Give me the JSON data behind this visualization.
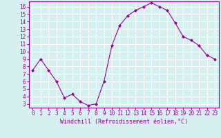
{
  "x": [
    0,
    1,
    2,
    3,
    4,
    5,
    6,
    7,
    8,
    9,
    10,
    11,
    12,
    13,
    14,
    15,
    16,
    17,
    18,
    19,
    20,
    21,
    22,
    23
  ],
  "y": [
    7.5,
    9.0,
    7.5,
    6.0,
    3.8,
    4.3,
    3.3,
    2.8,
    3.0,
    6.0,
    10.8,
    13.5,
    14.8,
    15.5,
    16.0,
    16.5,
    16.0,
    15.5,
    13.8,
    12.0,
    11.5,
    10.8,
    9.5,
    9.0
  ],
  "line_color": "#990099",
  "marker": "D",
  "marker_size": 2,
  "bg_color": "#d6f0f0",
  "grid_color": "#ffffff",
  "xlabel": "Windchill (Refroidissement éolien,°C)",
  "xlabel_color": "#990099",
  "tick_color": "#990099",
  "ylim": [
    2.5,
    16.7
  ],
  "xlim": [
    -0.5,
    23.5
  ],
  "yticks": [
    3,
    4,
    5,
    6,
    7,
    8,
    9,
    10,
    11,
    12,
    13,
    14,
    15,
    16
  ],
  "xticks": [
    0,
    1,
    2,
    3,
    4,
    5,
    6,
    7,
    8,
    9,
    10,
    11,
    12,
    13,
    14,
    15,
    16,
    17,
    18,
    19,
    20,
    21,
    22,
    23
  ],
  "spine_color": "#990099",
  "font_family": "monospace",
  "tick_fontsize": 5.5,
  "xlabel_fontsize": 6.0,
  "linewidth": 0.8
}
